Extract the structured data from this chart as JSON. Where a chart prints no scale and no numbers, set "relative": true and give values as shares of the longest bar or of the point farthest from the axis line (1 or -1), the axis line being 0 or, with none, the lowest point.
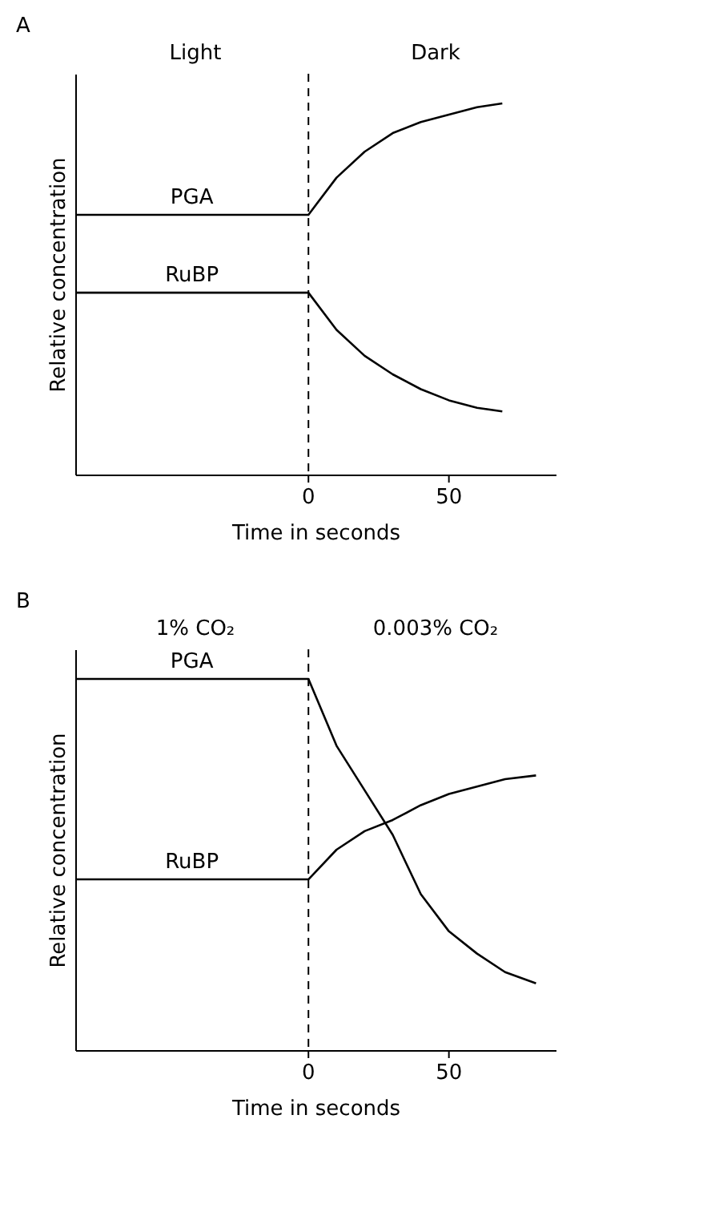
{
  "chart_data": [
    {
      "type": "line",
      "title": "A",
      "xlabel": "Time in seconds",
      "ylabel": "Relative concentration",
      "relative": true,
      "xlim": [
        -83,
        88
      ],
      "xticks": [
        0,
        50
      ],
      "tick_labels": "x",
      "grid": false,
      "legend": false,
      "marker": "none",
      "line_style": "solid",
      "annotations": [
        "Light",
        "Dark"
      ],
      "ref_lines": [
        {
          "axis": "x",
          "value": 0,
          "line_style": "dashed",
          "color": "#000000"
        }
      ],
      "series": [
        {
          "name": "PGA",
          "color": "#000000",
          "x": [
            -83,
            0,
            10,
            20,
            30,
            40,
            50,
            60,
            69
          ],
          "values": [
            0.7,
            0.7,
            0.8,
            0.87,
            0.92,
            0.95,
            0.97,
            0.99,
            1.0
          ]
        },
        {
          "name": "RuBP",
          "color": "#000000",
          "x": [
            -83,
            0,
            10,
            20,
            30,
            40,
            50,
            60,
            69
          ],
          "values": [
            0.49,
            0.49,
            0.39,
            0.32,
            0.27,
            0.23,
            0.2,
            0.18,
            0.17
          ]
        }
      ]
    },
    {
      "type": "line",
      "title": "B",
      "xlabel": "Time in seconds",
      "ylabel": "Relative concentration",
      "relative": true,
      "xlim": [
        -83,
        88
      ],
      "xticks": [
        0,
        50
      ],
      "tick_labels": "x",
      "grid": false,
      "legend": false,
      "marker": "none",
      "line_style": "solid",
      "annotations": [
        "1% CO₂",
        "0.003%    CO₂"
      ],
      "ref_lines": [
        {
          "axis": "x",
          "value": 0,
          "line_style": "dashed",
          "color": "#000000"
        }
      ],
      "series": [
        {
          "name": "PGA",
          "color": "#000000",
          "x": [
            -83,
            0,
            10,
            20,
            30,
            40,
            50,
            60,
            70,
            81
          ],
          "values": [
            1.0,
            1.0,
            0.82,
            0.7,
            0.58,
            0.42,
            0.32,
            0.26,
            0.21,
            0.18
          ]
        },
        {
          "name": "RuBP",
          "color": "#000000",
          "x": [
            -83,
            0,
            10,
            20,
            30,
            40,
            50,
            60,
            70,
            81
          ],
          "values": [
            0.46,
            0.46,
            0.54,
            0.59,
            0.62,
            0.66,
            0.69,
            0.71,
            0.73,
            0.74
          ]
        }
      ]
    }
  ]
}
